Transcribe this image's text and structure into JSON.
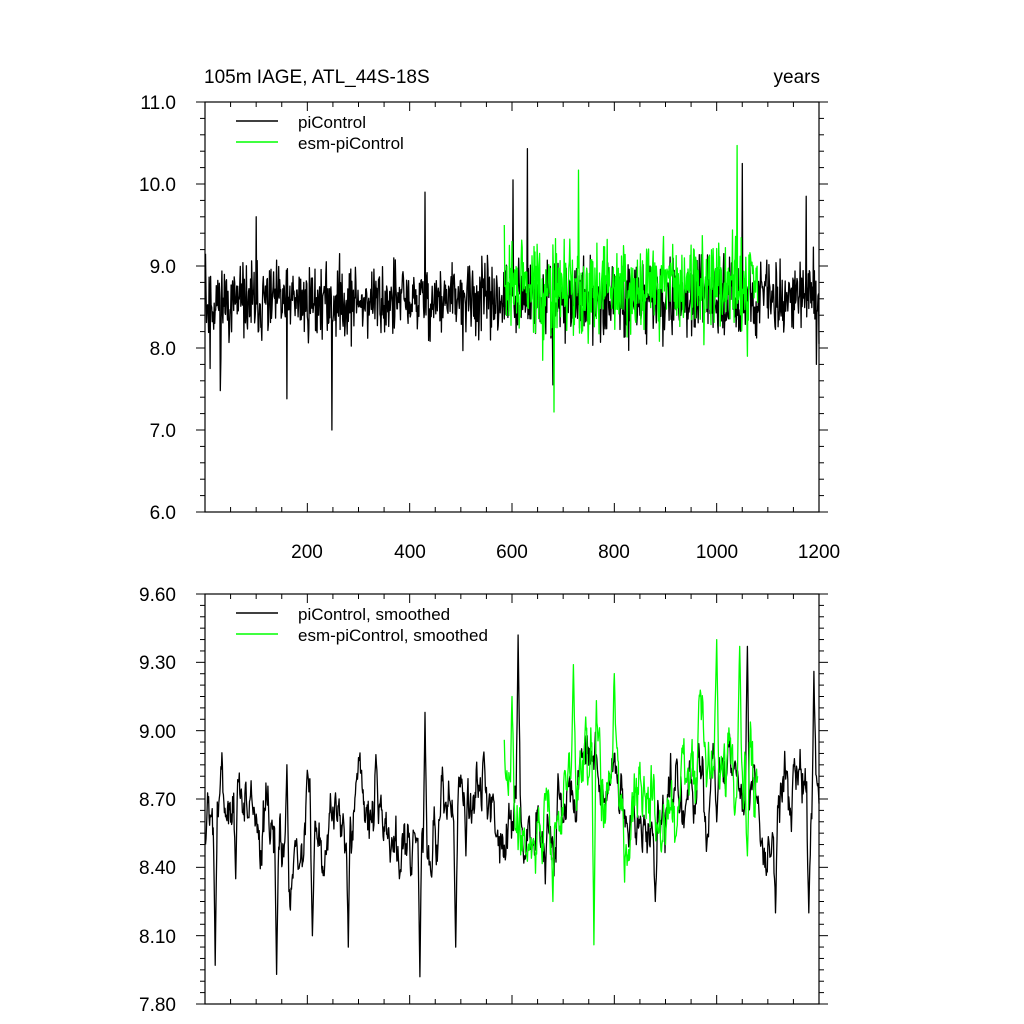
{
  "chart_data": [
    {
      "type": "line",
      "title": "105m IAGE, ATL_44S-18S",
      "title_right": "years",
      "xlim": [
        0,
        1200
      ],
      "ylim": [
        6.0,
        11.0
      ],
      "x_ticks": [
        200,
        400,
        600,
        800,
        1000,
        1200
      ],
      "x_tick_labels": [
        "200",
        "400",
        "600",
        "800",
        "1000",
        "1200"
      ],
      "y_ticks": [
        6.0,
        7.0,
        8.0,
        9.0,
        10.0,
        11.0
      ],
      "y_tick_labels": [
        "6.0",
        "7.0",
        "8.0",
        "9.0",
        "10.0",
        "11.0"
      ],
      "legend_position": "top-left",
      "series": [
        {
          "name": "piControl",
          "color": "#000000",
          "x_start": 1,
          "x_end": 1200,
          "mean": 8.55,
          "amplitude": 0.45,
          "seed": 11,
          "keypoints": [
            [
              1,
              9.15
            ],
            [
              10,
              7.75
            ],
            [
              30,
              7.48
            ],
            [
              100,
              9.6
            ],
            [
              160,
              7.38
            ],
            [
              248,
              7.0
            ],
            [
              430,
              9.9
            ],
            [
              602,
              10.05
            ],
            [
              630,
              10.43
            ],
            [
              680,
              7.55
            ],
            [
              1050,
              10.25
            ],
            [
              1175,
              9.85
            ],
            [
              1195,
              7.8
            ],
            [
              1200,
              8.05
            ]
          ]
        },
        {
          "name": "esm-piControl",
          "color": "#00ff00",
          "x_start": 585,
          "x_end": 1080,
          "mean": 8.72,
          "amplitude": 0.55,
          "seed": 29,
          "keypoints": [
            [
              585,
              9.5
            ],
            [
              600,
              9.3
            ],
            [
              660,
              7.85
            ],
            [
              682,
              7.22
            ],
            [
              730,
              10.17
            ],
            [
              1040,
              10.47
            ],
            [
              1060,
              7.9
            ],
            [
              1080,
              8.55
            ]
          ]
        }
      ]
    },
    {
      "type": "line",
      "title": "",
      "xlim": [
        0,
        1200
      ],
      "ylim": [
        7.8,
        9.6
      ],
      "x_ticks": [
        200,
        400,
        600,
        800,
        1000,
        1200
      ],
      "y_ticks": [
        7.8,
        8.1,
        8.4,
        8.7,
        9.0,
        9.3,
        9.6
      ],
      "y_tick_labels": [
        "7.80",
        "8.10",
        "8.40",
        "8.70",
        "9.00",
        "9.30",
        "9.60"
      ],
      "legend_position": "top-left",
      "series": [
        {
          "name": "piControl, smoothed",
          "color": "#000000",
          "x_start": 1,
          "x_end": 1200,
          "mean": 8.6,
          "amplitude": 0.2,
          "seed": 7,
          "keypoints": [
            [
              1,
              8.5
            ],
            [
              20,
              7.97
            ],
            [
              60,
              8.35
            ],
            [
              90,
              8.78
            ],
            [
              140,
              7.93
            ],
            [
              160,
              8.85
            ],
            [
              210,
              8.1
            ],
            [
              280,
              8.05
            ],
            [
              380,
              8.35
            ],
            [
              420,
              7.92
            ],
            [
              430,
              9.08
            ],
            [
              490,
              8.05
            ],
            [
              510,
              8.45
            ],
            [
              612,
              9.42
            ],
            [
              640,
              8.5
            ],
            [
              700,
              8.6
            ],
            [
              800,
              8.9
            ],
            [
              880,
              8.25
            ],
            [
              1000,
              8.6
            ],
            [
              1060,
              9.37
            ],
            [
              1115,
              8.2
            ],
            [
              1150,
              8.85
            ],
            [
              1180,
              8.2
            ],
            [
              1190,
              9.26
            ],
            [
              1200,
              8.68
            ]
          ]
        },
        {
          "name": "esm-piControl, smoothed",
          "color": "#00ff00",
          "x_start": 585,
          "x_end": 1080,
          "mean": 8.68,
          "amplitude": 0.24,
          "seed": 41,
          "keypoints": [
            [
              585,
              8.96
            ],
            [
              600,
              9.15
            ],
            [
              640,
              8.5
            ],
            [
              680,
              8.25
            ],
            [
              720,
              9.29
            ],
            [
              760,
              8.06
            ],
            [
              800,
              9.25
            ],
            [
              900,
              8.5
            ],
            [
              1000,
              9.4
            ],
            [
              1045,
              9.37
            ],
            [
              1060,
              8.45
            ],
            [
              1080,
              8.8
            ]
          ]
        }
      ]
    }
  ]
}
